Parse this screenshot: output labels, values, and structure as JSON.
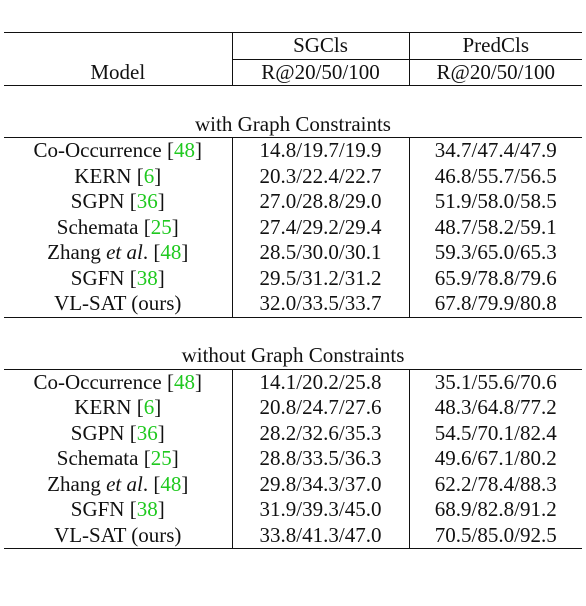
{
  "caption_remnant": "",
  "table": {
    "header": {
      "model": "Model",
      "groups": [
        "SGCls",
        "PredCls"
      ],
      "metrics": [
        "R@20/50/100",
        "R@20/50/100"
      ]
    },
    "sections": [
      {
        "title": "with Graph Constraints",
        "rows": [
          {
            "name": "Co-Occurrence",
            "em": "",
            "rest": "",
            "cite": "48",
            "sgcls": "14.8/19.7/19.9",
            "predcls": "34.7/47.4/47.9",
            "bold": false
          },
          {
            "name": "KERN",
            "em": "",
            "rest": "",
            "cite": "6",
            "sgcls": "20.3/22.4/22.7",
            "predcls": "46.8/55.7/56.5",
            "bold": false
          },
          {
            "name": "SGPN",
            "em": "",
            "rest": "",
            "cite": "36",
            "sgcls": "27.0/28.8/29.0",
            "predcls": "51.9/58.0/58.5",
            "bold": false
          },
          {
            "name": "Schemata",
            "em": "",
            "rest": "",
            "cite": "25",
            "sgcls": "27.4/29.2/29.4",
            "predcls": "48.7/58.2/59.1",
            "bold": false
          },
          {
            "name": "Zhang",
            "em": "et al",
            "rest": ".",
            "cite": "48",
            "sgcls": "28.5/30.0/30.1",
            "predcls": "59.3/65.0/65.3",
            "bold": false
          },
          {
            "name": "SGFN",
            "em": "",
            "rest": "",
            "cite": "38",
            "sgcls": "29.5/31.2/31.2",
            "predcls": "65.9/78.8/79.6",
            "bold": false
          },
          {
            "name": "VL-SAT (ours)",
            "em": "",
            "rest": "",
            "cite": "",
            "sgcls": "32.0/33.5/33.7",
            "predcls": "67.8/79.9/80.8",
            "bold": true
          }
        ]
      },
      {
        "title": "without Graph Constraints",
        "rows": [
          {
            "name": "Co-Occurrence",
            "em": "",
            "rest": "",
            "cite": "48",
            "sgcls": "14.1/20.2/25.8",
            "predcls": "35.1/55.6/70.6",
            "bold": false
          },
          {
            "name": "KERN",
            "em": "",
            "rest": "",
            "cite": "6",
            "sgcls": "20.8/24.7/27.6",
            "predcls": "48.3/64.8/77.2",
            "bold": false
          },
          {
            "name": "SGPN",
            "em": "",
            "rest": "",
            "cite": "36",
            "sgcls": "28.2/32.6/35.3",
            "predcls": "54.5/70.1/82.4",
            "bold": false
          },
          {
            "name": "Schemata",
            "em": "",
            "rest": "",
            "cite": "25",
            "sgcls": "28.8/33.5/36.3",
            "predcls": "49.6/67.1/80.2",
            "bold": false
          },
          {
            "name": "Zhang",
            "em": "et al",
            "rest": ".",
            "cite": "48",
            "sgcls": "29.8/34.3/37.0",
            "predcls": "62.2/78.4/88.3",
            "bold": false
          },
          {
            "name": "SGFN",
            "em": "",
            "rest": "",
            "cite": "38",
            "sgcls": "31.9/39.3/45.0",
            "predcls": "68.9/82.8/91.2",
            "bold": false
          },
          {
            "name": "VL-SAT (ours)",
            "em": "",
            "rest": "",
            "cite": "",
            "sgcls": "33.8/41.3/47.0",
            "predcls": "70.5/85.0/92.5",
            "bold": true
          }
        ]
      }
    ]
  }
}
